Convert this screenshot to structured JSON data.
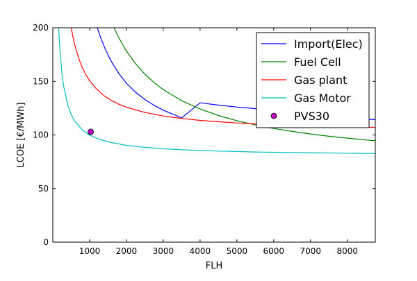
{
  "chart_data": {
    "type": "line",
    "title": "",
    "xlabel": "FLH",
    "ylabel": "LCOE [€/MWh]",
    "xlim": [
      0,
      8760
    ],
    "ylim": [
      0,
      200
    ],
    "xticks": [
      1000,
      2000,
      3000,
      4000,
      5000,
      6000,
      7000,
      8000
    ],
    "yticks": [
      0,
      50,
      100,
      150,
      200
    ],
    "grid": false,
    "legend_position": "top-right",
    "series": [
      {
        "name": "Import(Elec)",
        "color": "#0000ff",
        "x": [
          1200,
          1300,
          1400,
          1500,
          1600,
          1800,
          2000,
          2250,
          2500,
          2750,
          3000,
          3500,
          4000,
          4500,
          5000,
          5500,
          6000,
          6500,
          7000,
          7500,
          8000,
          8500,
          8760
        ],
        "y": [
          200.9,
          190.8,
          182.1,
          174.6,
          168.0,
          157.0,
          148.2,
          139.8,
          133.1,
          127.7,
          123.1,
          116.0,
          130.0,
          127.8,
          126.0,
          124.5,
          123.1,
          122.0,
          121.0,
          120.0,
          119.1,
          114.8,
          114.3
        ]
      },
      {
        "name": "Fuel Cell",
        "color": "#008000",
        "x": [
          1650,
          1800,
          2000,
          2250,
          2500,
          2750,
          3000,
          3500,
          4000,
          4500,
          5000,
          5500,
          6000,
          6500,
          7000,
          7500,
          8000,
          8500,
          8760
        ],
        "y": [
          200.8,
          190.3,
          178.3,
          166.3,
          156.7,
          148.8,
          142.3,
          131.9,
          124.2,
          118.1,
          113.3,
          109.3,
          106.0,
          103.3,
          100.9,
          98.8,
          97.0,
          95.4,
          94.6
        ]
      },
      {
        "name": "Gas plant",
        "color": "#ff0000",
        "x": [
          500,
          550,
          600,
          700,
          800,
          900,
          1000,
          1200,
          1400,
          1600,
          1800,
          2000,
          2500,
          3000,
          3500,
          4000,
          4500,
          5000,
          5500,
          6000,
          6500,
          7000,
          7500,
          8000,
          8500,
          8760
        ],
        "y": [
          200.0,
          191.0,
          183.5,
          171.7,
          162.9,
          156.0,
          150.5,
          142.3,
          136.4,
          132.0,
          128.6,
          125.9,
          121.0,
          117.7,
          115.4,
          113.6,
          112.3,
          111.2,
          110.3,
          109.6,
          109.0,
          108.4,
          108.0,
          107.6,
          107.2,
          107.1
        ]
      },
      {
        "name": "Gas Motor",
        "color": "#00bfbf",
        "x": [
          158,
          175,
          200,
          250,
          300,
          400,
          500,
          600,
          800,
          1000,
          1200,
          1500,
          2000,
          2500,
          3000,
          3500,
          4000,
          4500,
          5000,
          5500,
          6000,
          6500,
          7000,
          7500,
          8000,
          8500,
          8760
        ],
        "y": [
          200.2,
          189.4,
          176.5,
          157.2,
          144.5,
          128.6,
          119.0,
          112.7,
          104.7,
          99.9,
          96.7,
          93.5,
          90.3,
          88.4,
          87.1,
          86.2,
          85.5,
          84.9,
          84.5,
          84.1,
          83.8,
          83.6,
          83.4,
          83.2,
          83.0,
          82.8,
          82.8
        ]
      }
    ],
    "points": [
      {
        "name": "PVS30",
        "color": "#bf00bf",
        "x": 1030,
        "y": 103
      }
    ]
  }
}
